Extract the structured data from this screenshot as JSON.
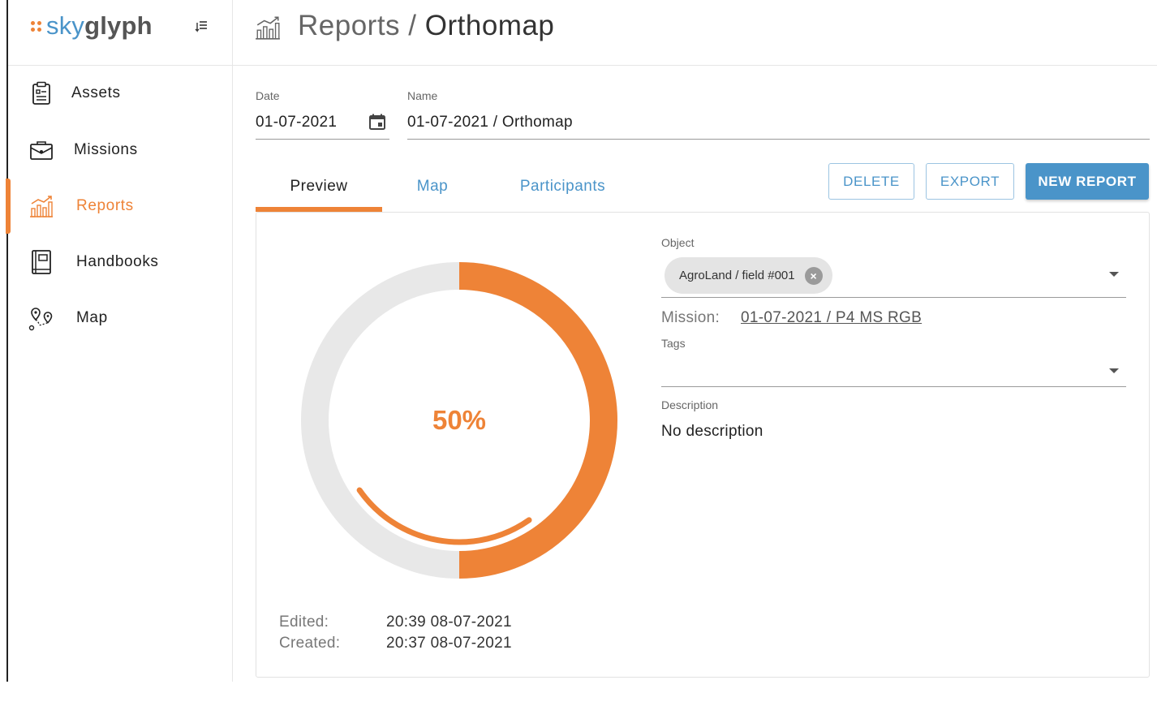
{
  "brand": {
    "prefix": "sky",
    "suffix": "glyph",
    "accent": "#ee8337",
    "primary": "#4a94c9"
  },
  "sidebar": {
    "items": [
      {
        "label": "Assets",
        "icon": "clipboard-icon",
        "active": false
      },
      {
        "label": "Missions",
        "icon": "briefcase-icon",
        "active": false
      },
      {
        "label": "Reports",
        "icon": "chart-icon",
        "active": true
      },
      {
        "label": "Handbooks",
        "icon": "book-icon",
        "active": false
      },
      {
        "label": "Map",
        "icon": "route-icon",
        "active": false
      }
    ]
  },
  "header": {
    "parent": "Reports",
    "separator": " / ",
    "current": "Orthomap",
    "icon": "chart-icon"
  },
  "form": {
    "date_label": "Date",
    "date_value": "01-07-2021",
    "name_label": "Name",
    "name_value": "01-07-2021 / Orthomap"
  },
  "tabs": [
    {
      "label": "Preview",
      "active": true
    },
    {
      "label": "Map",
      "active": false
    },
    {
      "label": "Participants",
      "active": false
    }
  ],
  "actions": {
    "delete_label": "DELETE",
    "export_label": "EXPORT",
    "new_report_label": "NEW REPORT"
  },
  "preview": {
    "progress_percent": 50,
    "progress_text": "50%",
    "inner_arc_fraction": 0.25,
    "edited_label": "Edited:",
    "edited_value": "20:39 08-07-2021",
    "created_label": "Created:",
    "created_value": "20:37 08-07-2021"
  },
  "details": {
    "object_label": "Object",
    "object_chip": "AgroLand / field #001",
    "mission_label": "Mission:",
    "mission_value": "01-07-2021 / P4 MS RGB",
    "tags_label": "Tags",
    "description_label": "Description",
    "description_value": "No description"
  }
}
